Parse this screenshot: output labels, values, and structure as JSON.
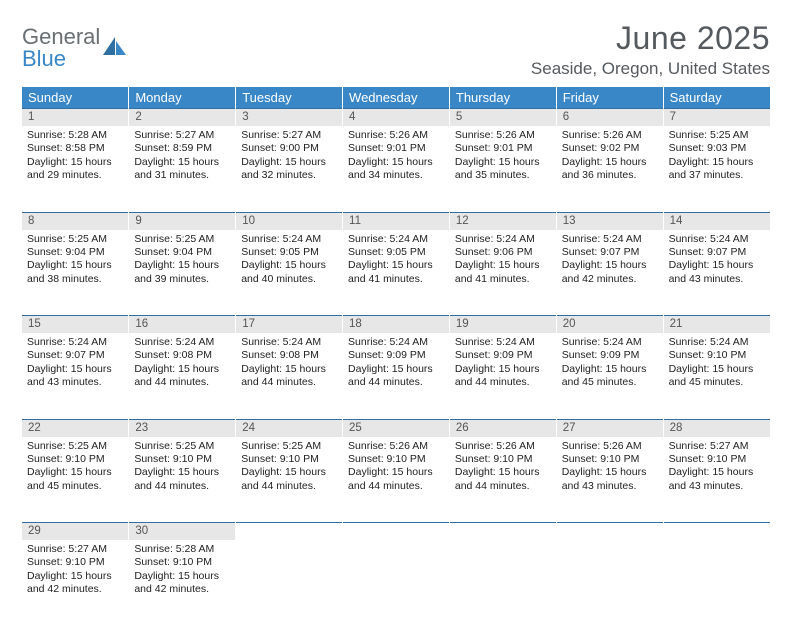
{
  "brand": {
    "part1": "General",
    "part2": "Blue"
  },
  "title": "June 2025",
  "location": "Seaside, Oregon, United States",
  "colors": {
    "header_bg": "#3a87c8",
    "header_text": "#ffffff",
    "rule": "#2f6fa3",
    "daynum_bg": "#e7e7e7",
    "text": "#222222",
    "title_text": "#555a5f"
  },
  "weekdays": [
    "Sunday",
    "Monday",
    "Tuesday",
    "Wednesday",
    "Thursday",
    "Friday",
    "Saturday"
  ],
  "weeks": [
    [
      {
        "n": "1",
        "sr": "Sunrise: 5:28 AM",
        "ss": "Sunset: 8:58 PM",
        "d1": "Daylight: 15 hours",
        "d2": "and 29 minutes."
      },
      {
        "n": "2",
        "sr": "Sunrise: 5:27 AM",
        "ss": "Sunset: 8:59 PM",
        "d1": "Daylight: 15 hours",
        "d2": "and 31 minutes."
      },
      {
        "n": "3",
        "sr": "Sunrise: 5:27 AM",
        "ss": "Sunset: 9:00 PM",
        "d1": "Daylight: 15 hours",
        "d2": "and 32 minutes."
      },
      {
        "n": "4",
        "sr": "Sunrise: 5:26 AM",
        "ss": "Sunset: 9:01 PM",
        "d1": "Daylight: 15 hours",
        "d2": "and 34 minutes."
      },
      {
        "n": "5",
        "sr": "Sunrise: 5:26 AM",
        "ss": "Sunset: 9:01 PM",
        "d1": "Daylight: 15 hours",
        "d2": "and 35 minutes."
      },
      {
        "n": "6",
        "sr": "Sunrise: 5:26 AM",
        "ss": "Sunset: 9:02 PM",
        "d1": "Daylight: 15 hours",
        "d2": "and 36 minutes."
      },
      {
        "n": "7",
        "sr": "Sunrise: 5:25 AM",
        "ss": "Sunset: 9:03 PM",
        "d1": "Daylight: 15 hours",
        "d2": "and 37 minutes."
      }
    ],
    [
      {
        "n": "8",
        "sr": "Sunrise: 5:25 AM",
        "ss": "Sunset: 9:04 PM",
        "d1": "Daylight: 15 hours",
        "d2": "and 38 minutes."
      },
      {
        "n": "9",
        "sr": "Sunrise: 5:25 AM",
        "ss": "Sunset: 9:04 PM",
        "d1": "Daylight: 15 hours",
        "d2": "and 39 minutes."
      },
      {
        "n": "10",
        "sr": "Sunrise: 5:24 AM",
        "ss": "Sunset: 9:05 PM",
        "d1": "Daylight: 15 hours",
        "d2": "and 40 minutes."
      },
      {
        "n": "11",
        "sr": "Sunrise: 5:24 AM",
        "ss": "Sunset: 9:05 PM",
        "d1": "Daylight: 15 hours",
        "d2": "and 41 minutes."
      },
      {
        "n": "12",
        "sr": "Sunrise: 5:24 AM",
        "ss": "Sunset: 9:06 PM",
        "d1": "Daylight: 15 hours",
        "d2": "and 41 minutes."
      },
      {
        "n": "13",
        "sr": "Sunrise: 5:24 AM",
        "ss": "Sunset: 9:07 PM",
        "d1": "Daylight: 15 hours",
        "d2": "and 42 minutes."
      },
      {
        "n": "14",
        "sr": "Sunrise: 5:24 AM",
        "ss": "Sunset: 9:07 PM",
        "d1": "Daylight: 15 hours",
        "d2": "and 43 minutes."
      }
    ],
    [
      {
        "n": "15",
        "sr": "Sunrise: 5:24 AM",
        "ss": "Sunset: 9:07 PM",
        "d1": "Daylight: 15 hours",
        "d2": "and 43 minutes."
      },
      {
        "n": "16",
        "sr": "Sunrise: 5:24 AM",
        "ss": "Sunset: 9:08 PM",
        "d1": "Daylight: 15 hours",
        "d2": "and 44 minutes."
      },
      {
        "n": "17",
        "sr": "Sunrise: 5:24 AM",
        "ss": "Sunset: 9:08 PM",
        "d1": "Daylight: 15 hours",
        "d2": "and 44 minutes."
      },
      {
        "n": "18",
        "sr": "Sunrise: 5:24 AM",
        "ss": "Sunset: 9:09 PM",
        "d1": "Daylight: 15 hours",
        "d2": "and 44 minutes."
      },
      {
        "n": "19",
        "sr": "Sunrise: 5:24 AM",
        "ss": "Sunset: 9:09 PM",
        "d1": "Daylight: 15 hours",
        "d2": "and 44 minutes."
      },
      {
        "n": "20",
        "sr": "Sunrise: 5:24 AM",
        "ss": "Sunset: 9:09 PM",
        "d1": "Daylight: 15 hours",
        "d2": "and 45 minutes."
      },
      {
        "n": "21",
        "sr": "Sunrise: 5:24 AM",
        "ss": "Sunset: 9:10 PM",
        "d1": "Daylight: 15 hours",
        "d2": "and 45 minutes."
      }
    ],
    [
      {
        "n": "22",
        "sr": "Sunrise: 5:25 AM",
        "ss": "Sunset: 9:10 PM",
        "d1": "Daylight: 15 hours",
        "d2": "and 45 minutes."
      },
      {
        "n": "23",
        "sr": "Sunrise: 5:25 AM",
        "ss": "Sunset: 9:10 PM",
        "d1": "Daylight: 15 hours",
        "d2": "and 44 minutes."
      },
      {
        "n": "24",
        "sr": "Sunrise: 5:25 AM",
        "ss": "Sunset: 9:10 PM",
        "d1": "Daylight: 15 hours",
        "d2": "and 44 minutes."
      },
      {
        "n": "25",
        "sr": "Sunrise: 5:26 AM",
        "ss": "Sunset: 9:10 PM",
        "d1": "Daylight: 15 hours",
        "d2": "and 44 minutes."
      },
      {
        "n": "26",
        "sr": "Sunrise: 5:26 AM",
        "ss": "Sunset: 9:10 PM",
        "d1": "Daylight: 15 hours",
        "d2": "and 44 minutes."
      },
      {
        "n": "27",
        "sr": "Sunrise: 5:26 AM",
        "ss": "Sunset: 9:10 PM",
        "d1": "Daylight: 15 hours",
        "d2": "and 43 minutes."
      },
      {
        "n": "28",
        "sr": "Sunrise: 5:27 AM",
        "ss": "Sunset: 9:10 PM",
        "d1": "Daylight: 15 hours",
        "d2": "and 43 minutes."
      }
    ],
    [
      {
        "n": "29",
        "sr": "Sunrise: 5:27 AM",
        "ss": "Sunset: 9:10 PM",
        "d1": "Daylight: 15 hours",
        "d2": "and 42 minutes."
      },
      {
        "n": "30",
        "sr": "Sunrise: 5:28 AM",
        "ss": "Sunset: 9:10 PM",
        "d1": "Daylight: 15 hours",
        "d2": "and 42 minutes."
      },
      null,
      null,
      null,
      null,
      null
    ]
  ]
}
